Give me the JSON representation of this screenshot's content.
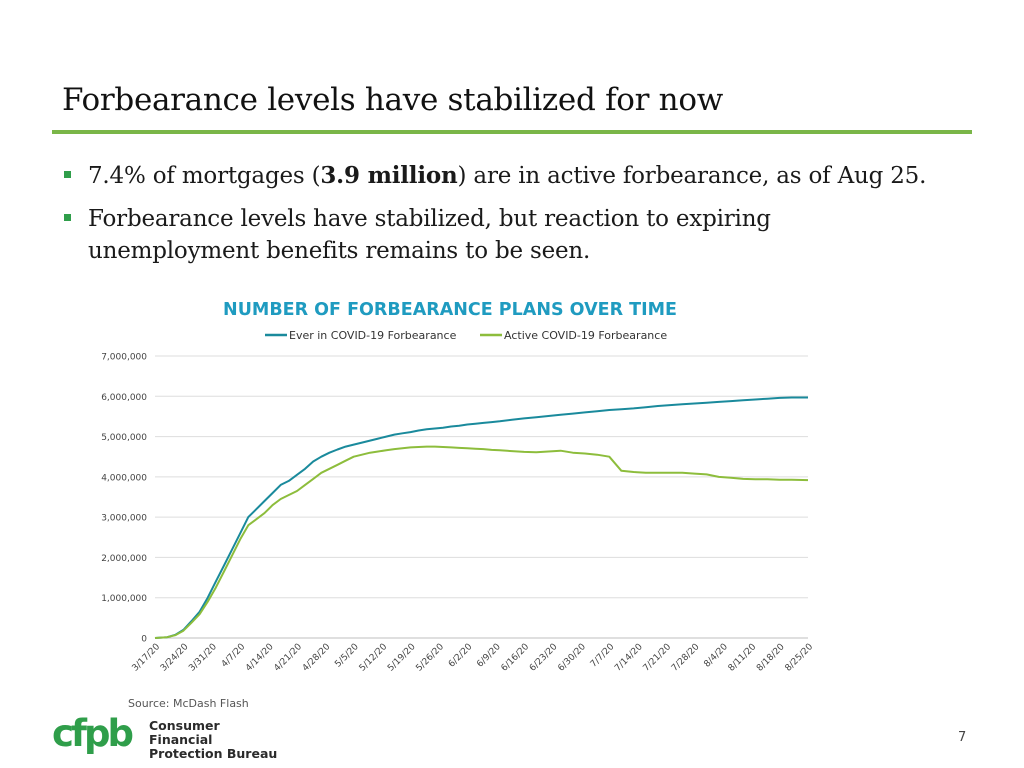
{
  "slide": {
    "title": "Forbearance levels have stabilized for now",
    "page_number": "7",
    "accent_color": "#7ab648",
    "bullet_color": "#2f9e4a"
  },
  "bullets": [
    {
      "before": "7.4% of mortgages (",
      "bold": "3.9 million",
      "after": ") are in active forbearance, as of Aug 25."
    },
    {
      "line1": "Forbearance levels have stabilized, but reaction to expiring",
      "line2": "unemployment benefits remains to be seen."
    }
  ],
  "logo": {
    "mark": "cfpb",
    "line1": "Consumer Financial",
    "line2": "Protection Bureau"
  },
  "chart_data": {
    "type": "line",
    "title": "NUMBER OF FORBEARANCE PLANS OVER TIME",
    "source": "Source: McDash Flash",
    "xlabel": "",
    "ylabel": "",
    "ylim": [
      0,
      7000000
    ],
    "yticks": [
      0,
      1000000,
      2000000,
      3000000,
      4000000,
      5000000,
      6000000,
      7000000
    ],
    "ytick_labels": [
      "0",
      "1,000,000",
      "2,000,000",
      "3,000,000",
      "4,000,000",
      "5,000,000",
      "6,000,000",
      "7,000,000"
    ],
    "grid": true,
    "legend_position": "top-center",
    "x_tick_labels": [
      "3/17/20",
      "3/24/20",
      "3/31/20",
      "4/7/20",
      "4/14/20",
      "4/21/20",
      "4/28/20",
      "5/5/20",
      "5/12/20",
      "5/19/20",
      "5/26/20",
      "6/2/20",
      "6/9/20",
      "6/16/20",
      "6/23/20",
      "6/30/20",
      "7/7/20",
      "7/14/20",
      "7/21/20",
      "7/28/20",
      "8/4/20",
      "8/11/20",
      "8/18/20",
      "8/25/20"
    ],
    "x_day_range": [
      0,
      161
    ],
    "series": [
      {
        "name": "Ever in COVID-19 Forbearance",
        "color": "#1a8a9c",
        "x": [
          0,
          3,
          5,
          7,
          9,
          11,
          13,
          15,
          17,
          19,
          21,
          23,
          25,
          27,
          29,
          31,
          33,
          35,
          37,
          39,
          41,
          43,
          45,
          47,
          49,
          51,
          53,
          55,
          57,
          59,
          61,
          63,
          65,
          67,
          69,
          71,
          73,
          75,
          77,
          79,
          81,
          83,
          85,
          88,
          91,
          94,
          97,
          100,
          103,
          106,
          109,
          112,
          115,
          118,
          121,
          124,
          127,
          130,
          133,
          136,
          139,
          142,
          145,
          148,
          151,
          154,
          157,
          161
        ],
        "values": [
          0,
          20000,
          80000,
          200000,
          420000,
          650000,
          1000000,
          1400000,
          1800000,
          2200000,
          2600000,
          3000000,
          3200000,
          3400000,
          3600000,
          3800000,
          3900000,
          4050000,
          4200000,
          4380000,
          4500000,
          4600000,
          4680000,
          4750000,
          4800000,
          4850000,
          4900000,
          4950000,
          5000000,
          5050000,
          5080000,
          5110000,
          5150000,
          5180000,
          5200000,
          5220000,
          5250000,
          5270000,
          5300000,
          5320000,
          5340000,
          5360000,
          5380000,
          5420000,
          5450000,
          5480000,
          5510000,
          5540000,
          5570000,
          5600000,
          5630000,
          5660000,
          5680000,
          5700000,
          5730000,
          5760000,
          5780000,
          5800000,
          5820000,
          5840000,
          5860000,
          5880000,
          5900000,
          5920000,
          5940000,
          5960000,
          5970000,
          5970000
        ]
      },
      {
        "name": "Active COVID-19 Forbearance",
        "color": "#8dbd3c",
        "x": [
          0,
          3,
          5,
          7,
          9,
          11,
          13,
          15,
          17,
          19,
          21,
          23,
          25,
          27,
          29,
          31,
          33,
          35,
          37,
          39,
          41,
          43,
          45,
          47,
          49,
          51,
          53,
          55,
          57,
          59,
          61,
          63,
          65,
          67,
          69,
          71,
          73,
          75,
          77,
          79,
          81,
          83,
          85,
          88,
          91,
          94,
          97,
          100,
          103,
          106,
          109,
          112,
          115,
          118,
          121,
          124,
          127,
          130,
          133,
          136,
          139,
          142,
          145,
          148,
          151,
          154,
          157,
          161
        ],
        "values": [
          0,
          20000,
          70000,
          180000,
          380000,
          590000,
          900000,
          1250000,
          1650000,
          2050000,
          2450000,
          2800000,
          2950000,
          3100000,
          3300000,
          3450000,
          3550000,
          3650000,
          3800000,
          3950000,
          4100000,
          4200000,
          4300000,
          4400000,
          4500000,
          4550000,
          4600000,
          4630000,
          4660000,
          4690000,
          4710000,
          4730000,
          4740000,
          4750000,
          4750000,
          4740000,
          4730000,
          4720000,
          4710000,
          4700000,
          4690000,
          4670000,
          4660000,
          4640000,
          4620000,
          4610000,
          4630000,
          4650000,
          4600000,
          4580000,
          4550000,
          4500000,
          4150000,
          4120000,
          4100000,
          4100000,
          4100000,
          4100000,
          4080000,
          4060000,
          4000000,
          3980000,
          3950000,
          3940000,
          3940000,
          3930000,
          3930000,
          3920000
        ]
      }
    ]
  }
}
